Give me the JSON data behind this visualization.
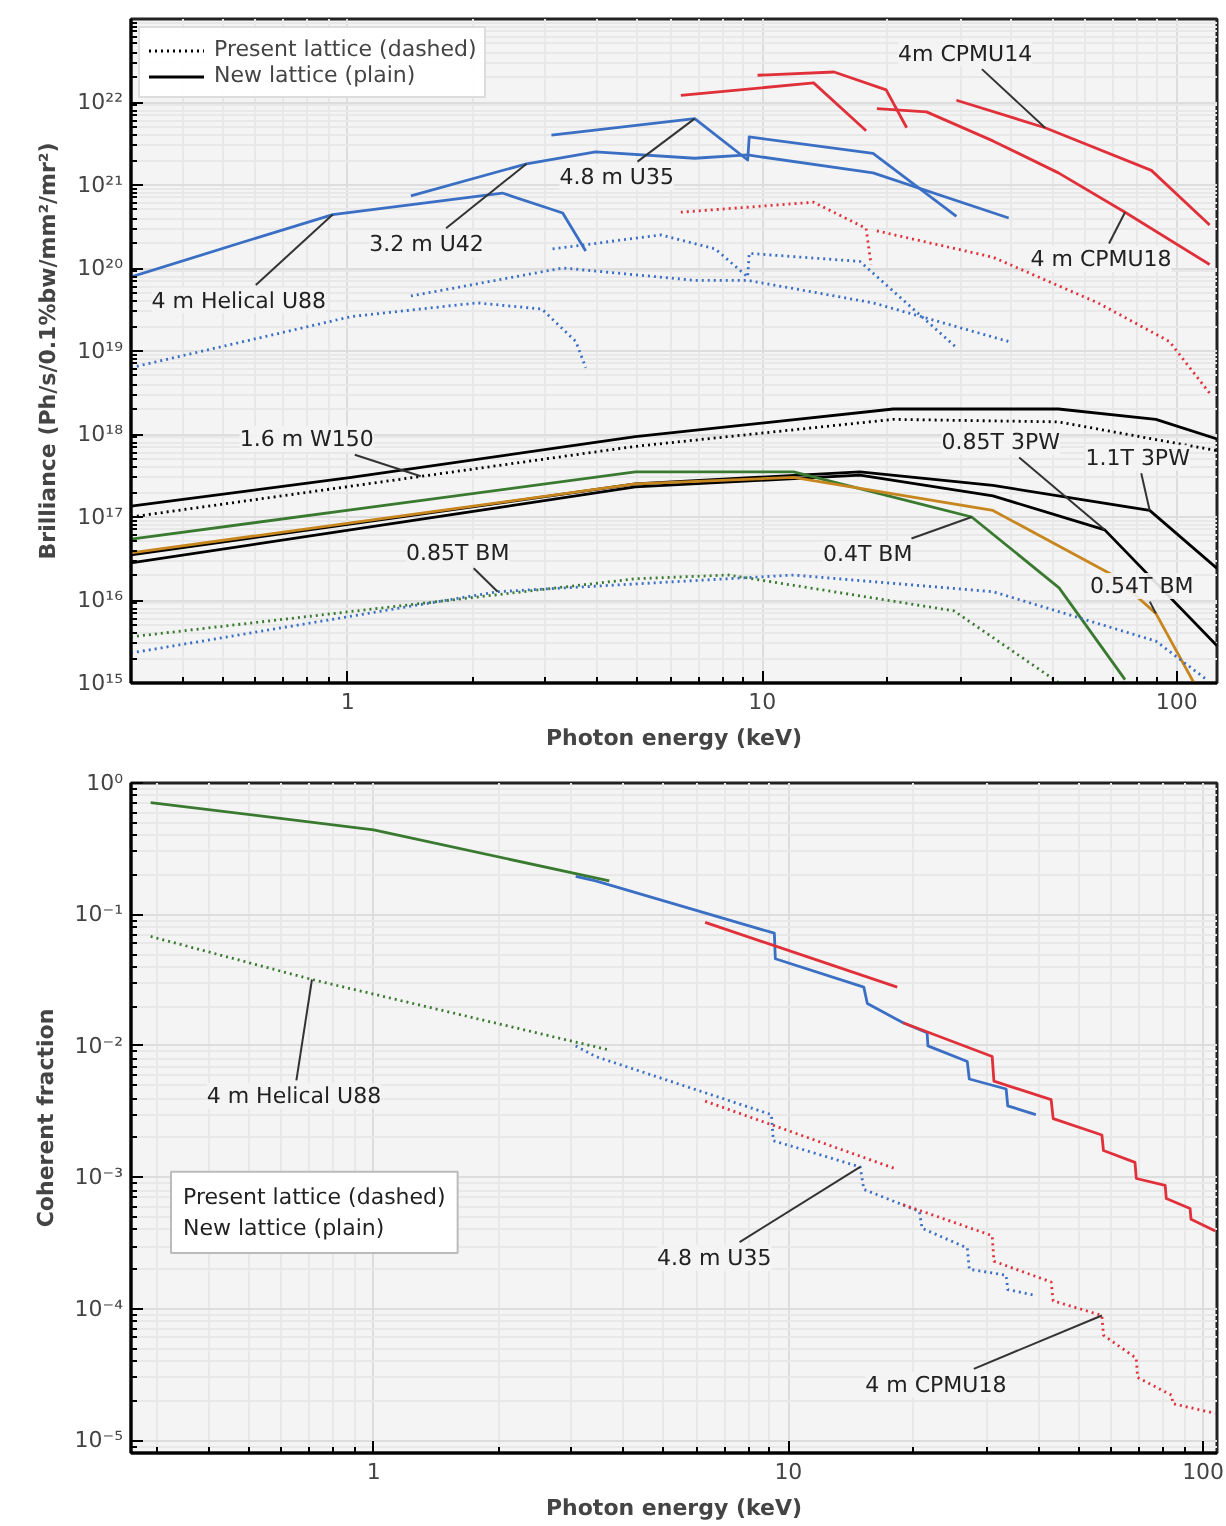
{
  "chart_data": [
    {
      "type": "line",
      "xlabel": "Photon energy (keV)",
      "ylabel": "Brilliance (Ph/s/0.1%bw/mm²/mr²)",
      "log": "xy",
      "grid": true,
      "legend": "top left",
      "xlim": [
        0.3,
        125
      ],
      "ylim": [
        1000000000000000.0,
        1e+23
      ],
      "xticks": [
        1,
        10,
        100
      ],
      "yticks": [
        {
          "value": 1000000000000000.0,
          "label": "10¹⁵"
        },
        {
          "value": 1e+16,
          "label": "10¹⁶"
        },
        {
          "value": 1e+17,
          "label": "10¹⁷"
        },
        {
          "value": 1e+18,
          "label": "10¹⁸"
        },
        {
          "value": 1e+19,
          "label": "10¹⁹"
        },
        {
          "value": 1e+20,
          "label": "10²⁰"
        },
        {
          "value": 1e+21,
          "label": "10²¹"
        },
        {
          "value": 1e+22,
          "label": "10²²"
        }
      ],
      "series": [
        {
          "name": "Present lattice (dashed)",
          "color": "#000000",
          "line_style": "dotted",
          "x": [
            0.3,
            4.94,
            20.7,
            51.8,
            125
          ],
          "values": [
            1e+17,
            7.1e+17,
            1.5e+18,
            1.4e+18,
            6.3e+17
          ]
        },
        {
          "name": "New lattice (plain)",
          "color": "#000000",
          "line_style": "solid",
          "x": [
            0.3,
            1.02,
            4.94,
            20.7,
            51.8,
            89,
            125
          ],
          "values": [
            1.35e+17,
            3e+17,
            9.3e+17,
            2e+18,
            2e+18,
            1.5e+18,
            8.7e+17
          ]
        },
        {
          "color": "#3a6fc4",
          "line_style": "solid",
          "x": [
            0.3,
            0.55,
            0.92,
            2.36,
            3.3,
            3.75
          ],
          "values": [
            7.8e+19,
            2e+20,
            4.4e+20,
            8e+20,
            4.6e+20,
            1.6e+20
          ]
        },
        {
          "color": "#3a6fc4",
          "line_style": "solid",
          "x": [
            1.42,
            2.7,
            3.96,
            6.87,
            9.22,
            18.5,
            39.3
          ],
          "values": [
            7.4e+20,
            1.8e+21,
            2.5e+21,
            2.1e+21,
            2.3e+21,
            1.4e+21,
            4e+20
          ]
        },
        {
          "color": "#3a6fc4",
          "line_style": "solid",
          "x": [
            3.1,
            6.87,
            9.22,
            9.3,
            18.5,
            29.4
          ],
          "values": [
            4e+21,
            6.3e+21,
            2e+21,
            3.8e+21,
            2.4e+21,
            4.2e+20
          ]
        },
        {
          "color": "#e0303a",
          "line_style": "solid",
          "x": [
            6.36,
            13.3,
            17.8
          ],
          "values": [
            1.2e+22,
            1.7e+22,
            4.5e+21
          ]
        },
        {
          "color": "#e0303a",
          "line_style": "solid",
          "x": [
            9.74,
            14.9,
            19.9,
            22.3
          ],
          "values": [
            2.1e+22,
            2.3e+22,
            1.4e+22,
            4.9e+21
          ]
        },
        {
          "color": "#e0303a",
          "line_style": "solid",
          "x": [
            18.9,
            24.9,
            36,
            51.8,
            75,
            120
          ],
          "values": [
            8.3e+21,
            7.6e+21,
            3.4e+21,
            1.4e+21,
            4.7e+20,
            1.1e+20
          ]
        },
        {
          "color": "#e0303a",
          "line_style": "solid",
          "x": [
            29.4,
            48.1,
            86.8,
            120
          ],
          "values": [
            1.05e+22,
            4.9e+21,
            1.5e+21,
            3.3e+20
          ]
        },
        {
          "color": "#e0303a",
          "line_style": "dotted",
          "x": [
            6.36,
            13.3,
            17.8,
            18.3
          ],
          "values": [
            4.7e+20,
            6.2e+20,
            3e+20,
            1.1e+20
          ]
        },
        {
          "color": "#e0303a",
          "line_style": "dotted",
          "x": [
            18.9,
            36,
            64.5,
            96,
            120
          ],
          "values": [
            2.8e+20,
            1.35e+20,
            3.8e+19,
            1.3e+19,
            3.1e+18
          ]
        },
        {
          "color": "#3a6fc4",
          "line_style": "dotted",
          "x": [
            0.3,
            1.02,
            2.05,
            2.94,
            3.55,
            3.75
          ],
          "values": [
            6.3e+18,
            2.6e+19,
            3.8e+19,
            3.2e+19,
            1.3e+19,
            6.3e+18
          ]
        },
        {
          "color": "#3a6fc4",
          "line_style": "dotted",
          "x": [
            1.42,
            3.3,
            6.87,
            9.22,
            18.5,
            39.3
          ],
          "values": [
            4.6e+19,
            1e+20,
            7.1e+19,
            7.1e+19,
            3.8e+19,
            1.3e+19
          ]
        },
        {
          "color": "#3a6fc4",
          "line_style": "dotted",
          "x": [
            3.12,
            5.7,
            7.7,
            9.22,
            9.3,
            17.2,
            29.4
          ],
          "values": [
            1.7e+20,
            2.5e+20,
            1.7e+20,
            7.8e+19,
            1.5e+20,
            1.2e+20,
            1.1e+19
          ]
        },
        {
          "color": "#000000",
          "line_style": "solid",
          "x": [
            0.3,
            4.94,
            17.2,
            36,
            86,
            125
          ],
          "values": [
            3.5e+16,
            2.5e+17,
            3.5e+17,
            2.4e+17,
            1.2e+17,
            2.4e+16
          ]
        },
        {
          "color": "#000000",
          "line_style": "solid",
          "x": [
            0.3,
            4.94,
            17.2,
            36,
            67,
            125
          ],
          "values": [
            2.8e+16,
            2.3e+17,
            3.2e+17,
            1.8e+17,
            7e+16,
            2800000000000000.0
          ]
        },
        {
          "color": "#3a7a30",
          "line_style": "solid",
          "x": [
            0.3,
            4.94,
            11.9,
            32,
            52,
            75
          ],
          "values": [
            5.4e+16,
            3.5e+17,
            3.5e+17,
            1e+17,
            1.4e+16,
            1100000000000000.0
          ]
        },
        {
          "color": "#c8861e",
          "line_style": "solid",
          "x": [
            0.3,
            4.94,
            11.9,
            36,
            70,
            89,
            110
          ],
          "values": [
            3.7e+16,
            2.5e+17,
            3e+17,
            1.2e+17,
            2e+16,
            6900000000000000.0,
            1000000000000000.0
          ]
        },
        {
          "color": "#3a6fc4",
          "line_style": "dotted",
          "x": [
            0.3,
            2.3,
            11.9,
            36,
            89,
            118
          ],
          "values": [
            2300000000000000.0,
            1.26e+16,
            2e+16,
            1.26e+16,
            3200000000000000.0,
            1100000000000000.0
          ]
        },
        {
          "color": "#3a7a30",
          "line_style": "dotted",
          "x": [
            0.3,
            4.94,
            8.3,
            29,
            52
          ],
          "values": [
            3600000000000000.0,
            1.8e+16,
            2e+16,
            7400000000000000.0,
            1000000000000000.0
          ]
        }
      ],
      "annotations": [
        {
          "text": "4m CPMU14",
          "x": 48.1,
          "y": 4.9e+21
        },
        {
          "text": "4.8 m U35",
          "x": 6.87,
          "y": 6.3e+21
        },
        {
          "text": "3.2 m U42",
          "x": 2.7,
          "y": 1.8e+21
        },
        {
          "text": "4 m Helical U88",
          "x": 0.92,
          "y": 4.4e+20
        },
        {
          "text": "4 m CPMU18",
          "x": 75,
          "y": 4.7e+20
        },
        {
          "text": "1.6 m W150",
          "x": 1.5,
          "y": 3.1e+17
        },
        {
          "text": "0.85T 3PW",
          "x": 67,
          "y": 7e+16
        },
        {
          "text": "1.1T 3PW",
          "x": 86,
          "y": 1.2e+17
        },
        {
          "text": "0.85T BM",
          "x": 2.3,
          "y": 1.26e+16
        },
        {
          "text": "0.4T BM",
          "x": 32,
          "y": 1e+17
        },
        {
          "text": "0.54T BM",
          "x": 89,
          "y": 6900000000000000.0
        }
      ]
    },
    {
      "type": "line",
      "xlabel": "Photon energy (keV)",
      "ylabel": "Coherent fraction",
      "log": "xy",
      "grid": true,
      "xlim": [
        0.26,
        108
      ],
      "ylim": [
        8e-06,
        1
      ],
      "xticks": [
        1,
        10,
        100
      ],
      "yticks": [
        {
          "value": 1,
          "label": "10⁰"
        },
        {
          "value": 0.1,
          "label": "10⁻¹"
        },
        {
          "value": 0.01,
          "label": "10⁻²"
        },
        {
          "value": 0.001,
          "label": "10⁻³"
        },
        {
          "value": 0.0001,
          "label": "10⁻⁴"
        },
        {
          "value": 1e-05,
          "label": "10⁻⁵"
        }
      ],
      "series": [
        {
          "color": "#3a7a30",
          "line_style": "solid",
          "x": [
            0.29,
            1,
            3.7
          ],
          "values": [
            0.71,
            0.44,
            0.18
          ]
        },
        {
          "color": "#3a6fc4",
          "line_style": "solid",
          "x": [
            3.07,
            3.43,
            9.25,
            9.3,
            15.2,
            15.5,
            18.9,
            21.6,
            21.7,
            27,
            27.3,
            33.5,
            33.8,
            39.5
          ],
          "values": [
            0.195,
            0.18,
            0.072,
            0.046,
            0.028,
            0.021,
            0.015,
            0.0126,
            0.01,
            0.0076,
            0.0056,
            0.0047,
            0.0035,
            0.003
          ]
        },
        {
          "color": "#e0303a",
          "line_style": "solid",
          "x": [
            6.3,
            18.3
          ],
          "values": [
            0.087,
            0.028
          ]
        },
        {
          "color": "#e0303a",
          "line_style": "solid",
          "x": [
            18.9,
            31,
            31.3,
            43,
            43.5,
            57,
            57.5,
            68.5,
            69,
            81,
            81.5,
            93,
            93.5,
            107
          ],
          "values": [
            0.015,
            0.0083,
            0.0054,
            0.0039,
            0.0028,
            0.0021,
            0.0016,
            0.0013,
            0.00098,
            0.00087,
            0.00069,
            0.00058,
            0.00048,
            0.00039
          ]
        },
        {
          "color": "#3a7a30",
          "line_style": "dotted",
          "x": [
            0.29,
            0.71,
            3.7
          ],
          "values": [
            0.068,
            0.032,
            0.0093
          ]
        },
        {
          "color": "#3a6fc4",
          "line_style": "dotted",
          "x": [
            3.07,
            3.43,
            9.1,
            9.2,
            14.9,
            15.2,
            20.7,
            21,
            27,
            27.3,
            33.5,
            33.8,
            39.5
          ],
          "values": [
            0.01,
            0.0083,
            0.003,
            0.0019,
            0.0012,
            0.00081,
            0.00055,
            0.00041,
            0.00029,
            0.0002,
            0.00018,
            0.00014,
            0.000126
          ]
        },
        {
          "color": "#e0303a",
          "line_style": "dotted",
          "x": [
            6.3,
            18.3
          ],
          "values": [
            0.0038,
            0.00115
          ]
        },
        {
          "color": "#e0303a",
          "line_style": "dotted",
          "x": [
            18.9,
            31,
            31.3,
            43,
            43.5,
            57,
            57.5,
            69,
            69.5,
            84,
            84.5,
            107
          ],
          "values": [
            0.00062,
            0.00036,
            0.00023,
            0.00016,
            0.000115,
            8.9e-05,
            6.3e-05,
            4.2e-05,
            3e-05,
            2.2e-05,
            1.9e-05,
            1.6e-05
          ]
        }
      ],
      "annotations": [
        {
          "text": "4 m Helical U88",
          "x": 0.71,
          "y": 0.032
        },
        {
          "text": "4.8 m U35",
          "x": 14.9,
          "y": 0.0012
        },
        {
          "text": "4 m CPMU18",
          "x": 57,
          "y": 8.9e-05
        },
        "Present lattice (dashed)",
        "New lattice (plain)"
      ]
    }
  ]
}
